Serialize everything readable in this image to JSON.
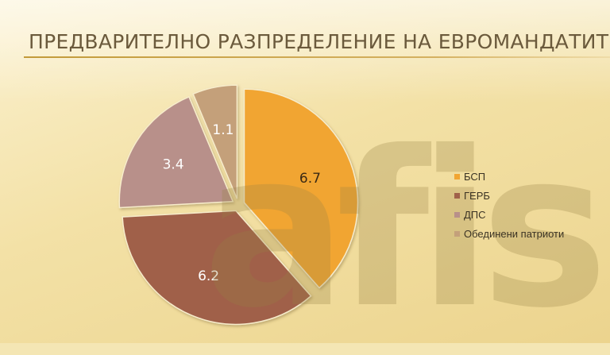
{
  "slide": {
    "title": "ПРЕДВАРИТЕЛНО РАЗПРЕДЕЛЕНИЕ НА ЕВРОМАНДАТИТЕ",
    "watermark": "afis"
  },
  "chart_data": {
    "type": "pie",
    "title": "",
    "categories": [
      "БСП",
      "ГЕРБ",
      "ДПС",
      "Обединени патриоти"
    ],
    "values": [
      6.7,
      6.2,
      3.4,
      1.1
    ],
    "value_labels": [
      "6.7",
      "6.2",
      "3.4",
      "1.1"
    ],
    "colors": [
      "#f1a532",
      "#a0614a",
      "#b8908a",
      "#c4a07a"
    ],
    "exploded": true,
    "legend_position": "right"
  }
}
